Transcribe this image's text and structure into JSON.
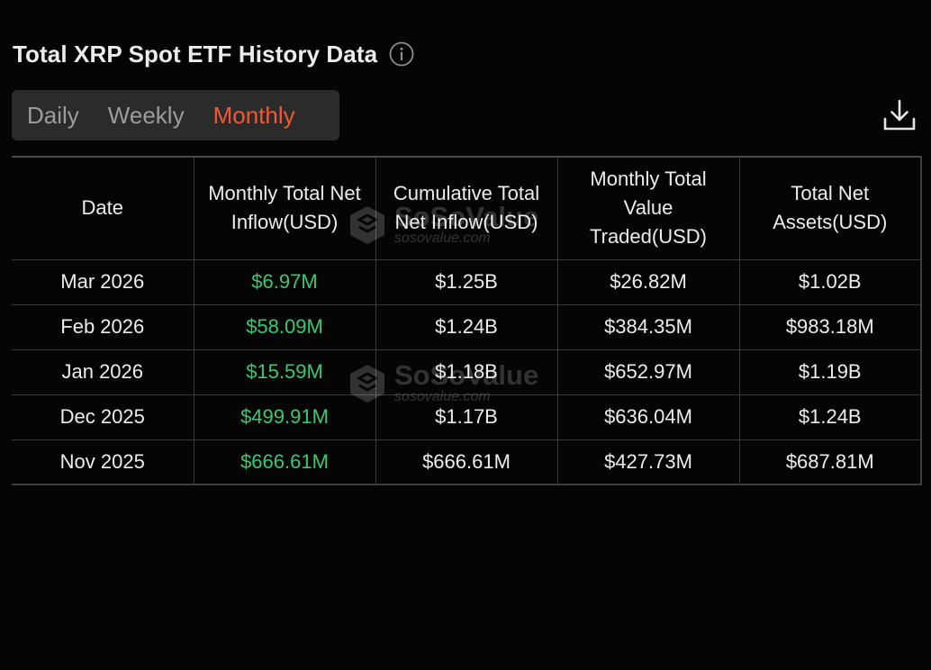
{
  "header": {
    "title": "Total XRP Spot ETF History Data"
  },
  "tabs": [
    {
      "label": "Daily",
      "active": false
    },
    {
      "label": "Weekly",
      "active": false
    },
    {
      "label": "Monthly",
      "active": true
    }
  ],
  "table": {
    "columns": [
      "Date",
      "Monthly Total Net Inflow(USD)",
      "Cumulative Total Net Inflow(USD)",
      "Monthly Total Value Traded(USD)",
      "Total Net Assets(USD)"
    ],
    "rows": [
      [
        "Mar 2026",
        "$6.97M",
        "$1.25B",
        "$26.82M",
        "$1.02B"
      ],
      [
        "Feb 2026",
        "$58.09M",
        "$1.24B",
        "$384.35M",
        "$983.18M"
      ],
      [
        "Jan 2026",
        "$15.59M",
        "$1.18B",
        "$652.97M",
        "$1.19B"
      ],
      [
        "Dec 2025",
        "$499.91M",
        "$1.17B",
        "$636.04M",
        "$1.24B"
      ],
      [
        "Nov 2025",
        "$666.61M",
        "$666.61M",
        "$427.73M",
        "$687.81M"
      ]
    ]
  },
  "watermark": {
    "brand": "SoSoValue",
    "url": "sosovalue.com"
  },
  "colors": {
    "accent": "#ef5a33",
    "positive": "#3cc870",
    "background": "#050505",
    "tab_background": "#2b2b2b"
  },
  "icons": {
    "info": "info-circle-icon",
    "download": "download-icon"
  }
}
